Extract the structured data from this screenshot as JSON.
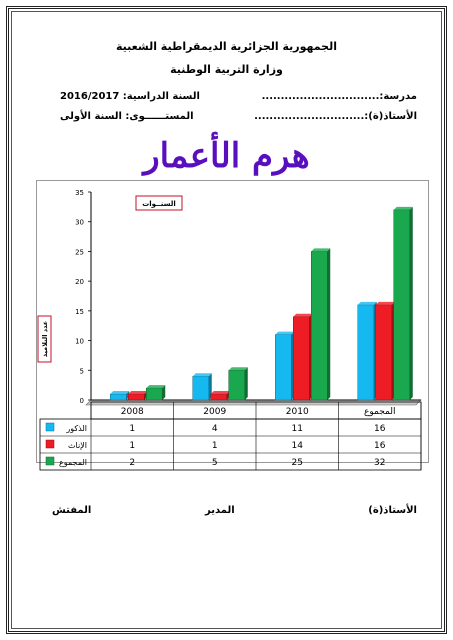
{
  "header": {
    "republic": "الجمهورية الجزائرية الديمقراطية الشعبية",
    "ministry": "وزارة التربية الوطنية",
    "school_label": "مدرسة:...............................",
    "year_label": "السنة الدراسية: 2016/2017",
    "teacher_label": "الأستاذ(ة):.............................",
    "level_label": "المستــــــوى: السنة الأولى"
  },
  "title": "هرم الأعمار",
  "chart_data": {
    "type": "bar",
    "categories": [
      "2008",
      "2009",
      "2010",
      "المجموع"
    ],
    "series": [
      {
        "name": "الذكور",
        "values": [
          1,
          4,
          11,
          16
        ],
        "color": "#16b8f0"
      },
      {
        "name": "الإناث",
        "values": [
          1,
          1,
          14,
          16
        ],
        "color": "#ee1c24"
      },
      {
        "name": "المجموع",
        "values": [
          2,
          5,
          25,
          32
        ],
        "color": "#1aa84e"
      }
    ],
    "ylim": [
      0,
      35
    ],
    "yticks": [
      0,
      5,
      10,
      15,
      20,
      25,
      30,
      35
    ],
    "xlabel": "السنــوات",
    "ylabel": "عدد التلاميذ",
    "grid": false,
    "legend": "table-left"
  },
  "signatures": {
    "teacher": "الأستاذ(ة)",
    "director": "المدير",
    "inspector": "المفتش"
  }
}
